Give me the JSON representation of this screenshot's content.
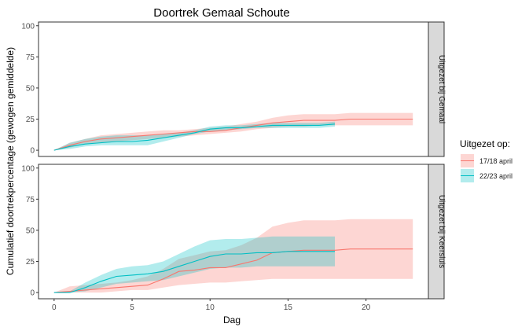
{
  "chart_data": {
    "type": "line",
    "title": "Doortrek Gemaal Schoute",
    "xlabel": "Dag",
    "ylabel": "Cumulatief doortrekpercentage (gewogen gemiddelde)",
    "xlim": [
      -1,
      24
    ],
    "ylim": [
      -5,
      103
    ],
    "x_ticks": [
      0,
      5,
      10,
      15,
      20
    ],
    "y_ticks": [
      0,
      25,
      50,
      75,
      100
    ],
    "legend": {
      "title": "Uitgezet op:",
      "position": "right",
      "entries": [
        {
          "label": "17/18 april",
          "line_color": "#F8766D",
          "fill_color": "#F8766D"
        },
        {
          "label": "22/23 april",
          "line_color": "#00BFC4",
          "fill_color": "#00BFC4"
        }
      ]
    },
    "panels": [
      {
        "label": "Uitgezet bij Gemaal",
        "series": [
          {
            "name": "17/18 april",
            "x": [
              0,
              1,
              2,
              3,
              4,
              5,
              6,
              7,
              8,
              9,
              10,
              11,
              12,
              13,
              14,
              15,
              16,
              17,
              18,
              19,
              20,
              21,
              22,
              23
            ],
            "y": [
              0,
              4,
              7,
              9,
              10,
              11,
              12,
              13,
              14,
              15,
              15,
              16,
              18,
              20,
              22,
              23,
              24,
              24,
              24,
              25,
              25,
              25,
              25,
              25
            ],
            "lower": [
              0,
              2,
              5,
              6,
              7,
              8,
              9,
              10,
              11,
              12,
              13,
              14,
              15,
              17,
              18,
              19,
              19,
              20,
              20,
              20,
              20,
              20,
              20,
              20
            ],
            "upper": [
              0,
              6,
              9,
              12,
              13,
              14,
              15,
              16,
              16,
              17,
              18,
              19,
              21,
              23,
              26,
              28,
              29,
              29,
              29,
              30,
              30,
              30,
              30,
              30
            ]
          },
          {
            "name": "22/23 april",
            "x": [
              0,
              1,
              2,
              3,
              4,
              5,
              6,
              7,
              8,
              9,
              10,
              11,
              12,
              13,
              14,
              15,
              16,
              17,
              18
            ],
            "y": [
              0,
              3,
              5,
              6,
              7,
              7,
              8,
              10,
              12,
              14,
              17,
              18,
              18,
              19,
              20,
              20,
              20,
              20,
              21
            ],
            "lower": [
              0,
              1,
              3,
              4,
              4,
              4,
              4,
              7,
              10,
              13,
              15,
              16,
              17,
              18,
              18,
              18,
              18,
              18,
              19
            ],
            "upper": [
              0,
              6,
              9,
              11,
              12,
              12,
              12,
              13,
              14,
              16,
              19,
              20,
              20,
              21,
              22,
              22,
              22,
              22,
              23
            ]
          }
        ]
      },
      {
        "label": "Uitgezet bij Keersluis",
        "series": [
          {
            "name": "17/18 april",
            "x": [
              0,
              1,
              2,
              3,
              4,
              5,
              6,
              7,
              8,
              9,
              10,
              11,
              12,
              13,
              14,
              15,
              16,
              17,
              18,
              19,
              20,
              21,
              22,
              23
            ],
            "y": [
              0,
              1,
              2,
              3,
              4,
              5,
              6,
              11,
              17,
              18,
              20,
              20,
              23,
              26,
              32,
              33,
              34,
              34,
              34,
              35,
              35,
              35,
              35,
              35
            ],
            "lower": [
              0,
              0,
              0,
              0,
              1,
              2,
              2,
              4,
              6,
              7,
              8,
              8,
              9,
              10,
              11,
              11,
              11,
              11,
              11,
              11,
              11,
              11,
              11,
              11
            ],
            "upper": [
              0,
              5,
              6,
              7,
              8,
              10,
              13,
              19,
              27,
              30,
              33,
              34,
              38,
              44,
              53,
              56,
              58,
              58,
              58,
              59,
              59,
              59,
              59,
              59
            ]
          },
          {
            "name": "22/23 april",
            "x": [
              0,
              1,
              2,
              3,
              4,
              5,
              6,
              7,
              8,
              9,
              10,
              11,
              12,
              13,
              14,
              15,
              16,
              17,
              18
            ],
            "y": [
              0,
              0,
              4,
              9,
              13,
              14,
              15,
              17,
              21,
              25,
              29,
              31,
              31,
              32,
              32,
              33,
              33,
              33,
              33
            ],
            "lower": [
              0,
              0,
              1,
              4,
              7,
              8,
              9,
              10,
              13,
              16,
              19,
              20,
              20,
              21,
              21,
              21,
              21,
              21,
              21
            ],
            "upper": [
              0,
              1,
              8,
              14,
              19,
              21,
              22,
              25,
              31,
              37,
              42,
              43,
              43,
              44,
              45,
              45,
              45,
              45,
              45
            ]
          }
        ]
      }
    ]
  }
}
